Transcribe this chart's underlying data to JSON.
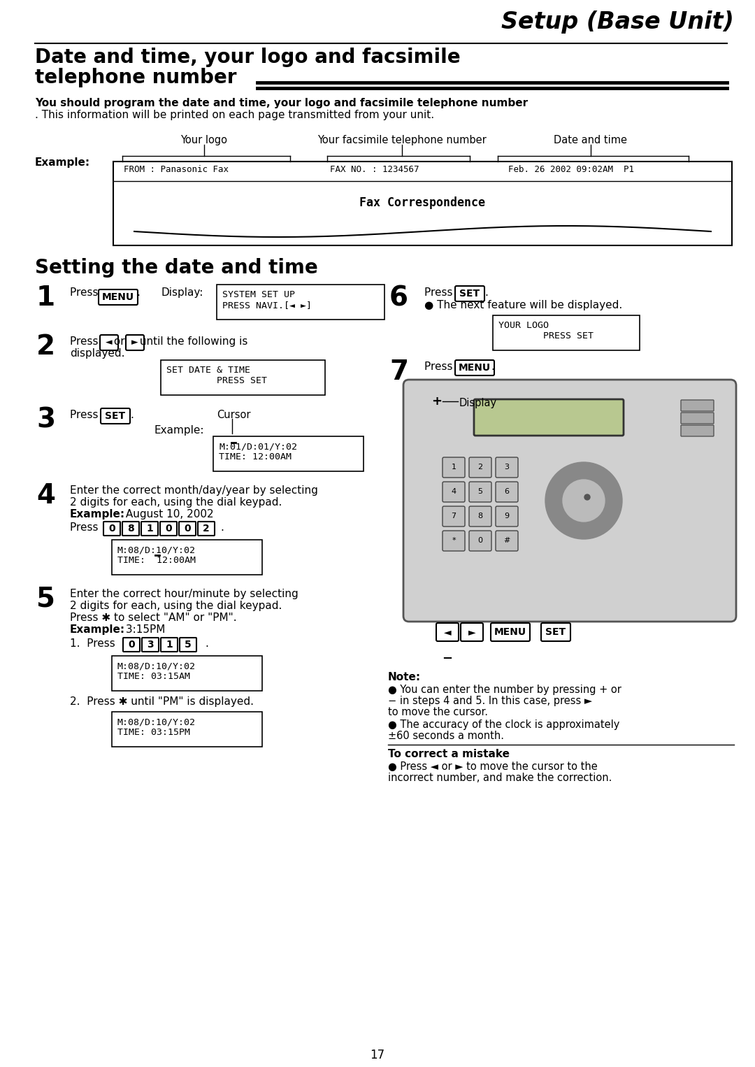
{
  "title": "Setup (Base Unit)",
  "section1_title_l1": "Date and time, your logo and facsimile",
  "section1_title_l2": "telephone number",
  "body_bold": "You should program the date and time, your logo and facsimile telephone number",
  "body_normal": ". This information will be printed on each page transmitted from your unit.",
  "label_logo": "Your logo",
  "label_fax_num": "Your facsimile telephone number",
  "label_date_time": "Date and time",
  "fax_from": "FROM : Panasonic Fax",
  "fax_no": "FAX NO. : 1234567",
  "fax_date": "Feb. 26 2002 09:02AM  P1",
  "fax_center": "Fax Correspondence",
  "section2_title": "Setting the date and time",
  "step1_disp_l1": "SYSTEM SET UP",
  "step1_disp_l2": "PRESS NAVI.[◄ ►]",
  "step2_disp_l1": "SET DATE & TIME",
  "step2_disp_l2": "         PRESS SET",
  "step3_disp_l1": "M:01/D:01/Y:02",
  "step3_disp_l2": "TIME: 12:00AM",
  "step4_disp_l1": "M:08/D:10/Y:02",
  "step4_disp_l2": "TIME:  ̲°12:00AM",
  "step4_disp_l2_raw": "TIME:  12:00AM",
  "step5a_disp_l1": "M:08/D:10/Y:02",
  "step5a_disp_l2": "TIME: 03:15AM",
  "step5b_disp_l1": "M:08/D:10/Y:02",
  "step5b_disp_l2": "TIME: 03:15PM",
  "step6_disp_l1": "YOUR LOGO",
  "step6_disp_l2": "        PRESS SET",
  "note_title": "Note:",
  "note1_l1": "● You can enter the number by pressing + or",
  "note1_l2": "− in steps 4 and 5. In this case, press ►",
  "note1_l3": "to move the cursor.",
  "note2_l1": "● The accuracy of the clock is approximately",
  "note2_l2": "±60 seconds a month.",
  "correct_title": "To correct a mistake",
  "correct_l1": "● Press ◄ or ► to move the cursor to the",
  "correct_l2": "incorrect number, and make the correction.",
  "page_num": "17",
  "bg_color": "#ffffff"
}
